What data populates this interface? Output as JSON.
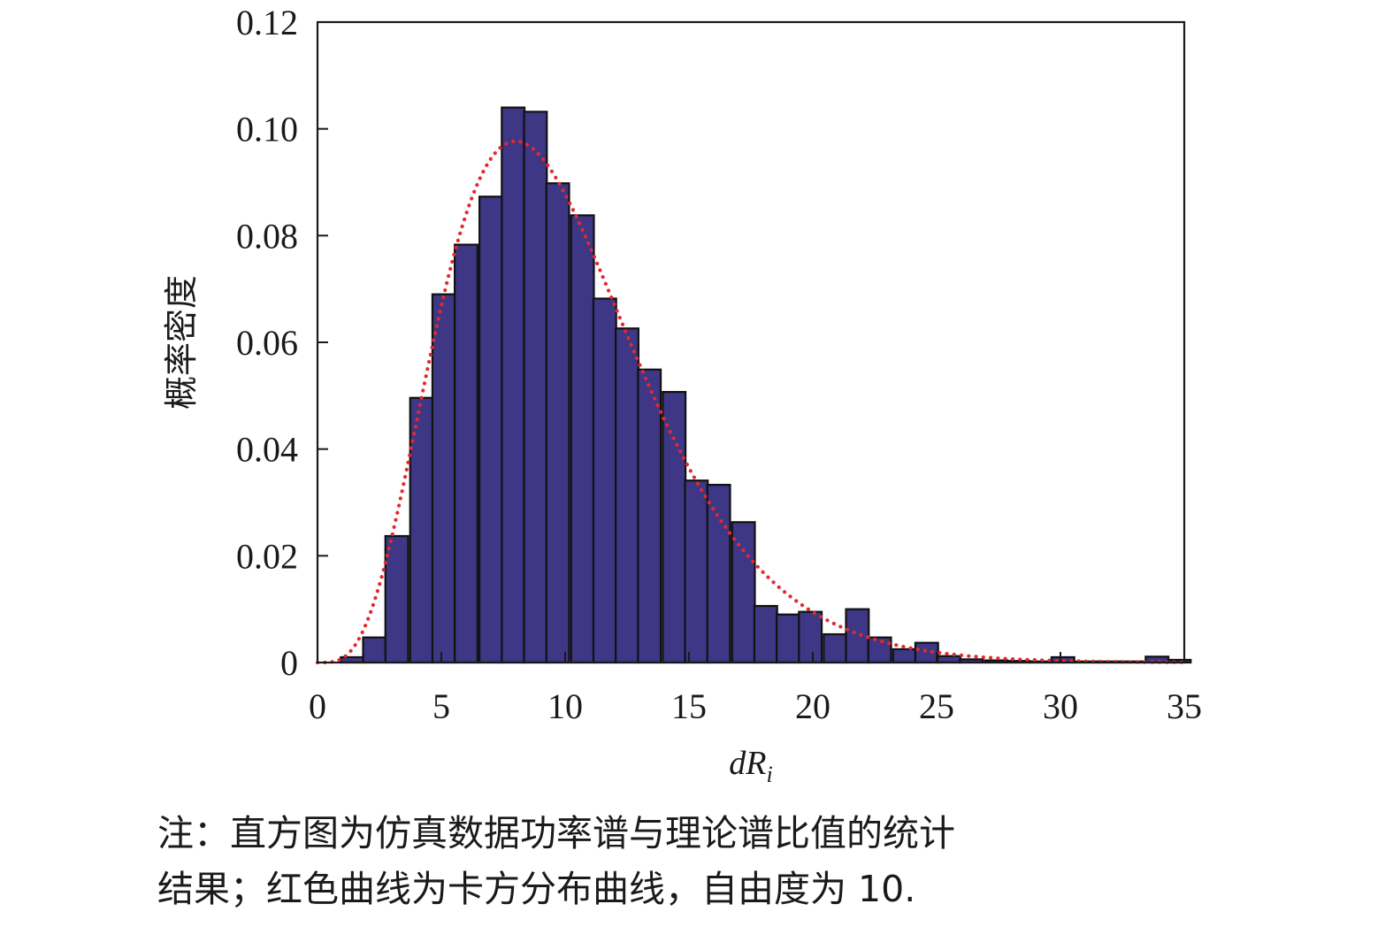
{
  "chart_data": {
    "type": "bar",
    "xlabel": "dR",
    "xlabel_subscript": "i",
    "ylabel": "概率密度",
    "xlim": [
      0,
      35
    ],
    "ylim": [
      0,
      0.12
    ],
    "x_ticks": [
      "0",
      "5",
      "10",
      "15",
      "20",
      "25",
      "30",
      "35"
    ],
    "x_tick_values": [
      0,
      5,
      10,
      15,
      20,
      25,
      30,
      35
    ],
    "y_ticks": [
      "0",
      "0.02",
      "0.04",
      "0.06",
      "0.08",
      "0.10",
      "0.12"
    ],
    "y_tick_values": [
      0,
      0.02,
      0.04,
      0.06,
      0.08,
      0.1,
      0.12
    ],
    "bin_width": 0.92,
    "bins": [
      {
        "x": 1.4,
        "y": 0.001
      },
      {
        "x": 2.3,
        "y": 0.0047
      },
      {
        "x": 3.2,
        "y": 0.0237
      },
      {
        "x": 4.2,
        "y": 0.0496
      },
      {
        "x": 5.1,
        "y": 0.069
      },
      {
        "x": 6.0,
        "y": 0.0783
      },
      {
        "x": 7.0,
        "y": 0.0873
      },
      {
        "x": 7.9,
        "y": 0.104
      },
      {
        "x": 8.8,
        "y": 0.1032
      },
      {
        "x": 9.7,
        "y": 0.0898
      },
      {
        "x": 10.7,
        "y": 0.0838
      },
      {
        "x": 11.6,
        "y": 0.0682
      },
      {
        "x": 12.5,
        "y": 0.0626
      },
      {
        "x": 13.4,
        "y": 0.0549
      },
      {
        "x": 14.4,
        "y": 0.0507
      },
      {
        "x": 15.3,
        "y": 0.0341
      },
      {
        "x": 16.2,
        "y": 0.0333
      },
      {
        "x": 17.2,
        "y": 0.0263
      },
      {
        "x": 18.1,
        "y": 0.0106
      },
      {
        "x": 19.0,
        "y": 0.009
      },
      {
        "x": 19.9,
        "y": 0.0095
      },
      {
        "x": 20.9,
        "y": 0.0053
      },
      {
        "x": 21.8,
        "y": 0.01
      },
      {
        "x": 22.7,
        "y": 0.0047
      },
      {
        "x": 23.7,
        "y": 0.0025
      },
      {
        "x": 24.6,
        "y": 0.0037
      },
      {
        "x": 25.5,
        "y": 0.0012
      },
      {
        "x": 26.4,
        "y": 0.0006
      },
      {
        "x": 27.4,
        "y": 0.0004
      },
      {
        "x": 28.3,
        "y": 0.0003
      },
      {
        "x": 29.2,
        "y": 0.0002
      },
      {
        "x": 30.1,
        "y": 0.001
      },
      {
        "x": 31.1,
        "y": 0.0002
      },
      {
        "x": 32.0,
        "y": 0.0002
      },
      {
        "x": 32.9,
        "y": 0.0002
      },
      {
        "x": 33.9,
        "y": 0.0011
      },
      {
        "x": 34.8,
        "y": 0.0005
      }
    ],
    "curve": {
      "distribution": "chi-square",
      "degrees_of_freedom": 10,
      "style": "dotted",
      "color": "#e02a2f"
    },
    "bar_color": "#3d3785",
    "bar_edge_color": "#111111",
    "grid": false
  },
  "caption": {
    "line1": "注：直方图为仿真数据功率谱与理论谱比值的统计",
    "line2": "结果；红色曲线为卡方分布曲线，自由度为 10."
  }
}
